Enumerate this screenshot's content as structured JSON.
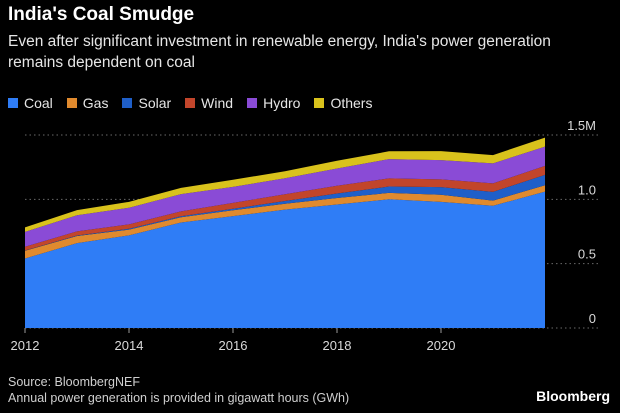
{
  "header": {
    "title": "India's Coal Smudge",
    "subtitle": "Even after significant investment in renewable energy, India's power generation remains dependent on coal"
  },
  "footer": {
    "source": "Source: BloombergNEF",
    "note": "Annual power generation is provided in gigawatt hours (GWh)",
    "brand": "Bloomberg"
  },
  "chart_data": {
    "type": "area",
    "stacked": true,
    "title": "India's Coal Smudge",
    "xlabel": "",
    "ylabel": "",
    "x": [
      2012,
      2013,
      2014,
      2015,
      2016,
      2017,
      2018,
      2019,
      2020,
      2021,
      2022
    ],
    "xlim": [
      2012,
      2022
    ],
    "ylim": [
      0,
      1500000
    ],
    "x_ticks": [
      "2012",
      "2014",
      "2016",
      "2018",
      "2020"
    ],
    "x_tick_values": [
      2012,
      2014,
      2016,
      2018,
      2020
    ],
    "y_ticks": [
      "0",
      "0.5",
      "1.0",
      "1.5M"
    ],
    "y_tick_values": [
      0,
      500000,
      1000000,
      1500000
    ],
    "grid": true,
    "legend_position": "top-left",
    "series": [
      {
        "name": "Coal",
        "color": "#2f7df6",
        "values": [
          540000,
          660000,
          720000,
          820000,
          870000,
          920000,
          960000,
          1000000,
          980000,
          950000,
          1060000
        ]
      },
      {
        "name": "Gas",
        "color": "#e08a2e",
        "values": [
          60000,
          55000,
          45000,
          40000,
          45000,
          45000,
          50000,
          50000,
          55000,
          40000,
          50000
        ]
      },
      {
        "name": "Solar",
        "color": "#1f5fc9",
        "values": [
          2000,
          4000,
          6000,
          8000,
          12000,
          22000,
          35000,
          50000,
          60000,
          68000,
          80000
        ]
      },
      {
        "name": "Wind",
        "color": "#c2452b",
        "values": [
          30000,
          32000,
          34000,
          38000,
          45000,
          52000,
          60000,
          63000,
          60000,
          66000,
          70000
        ]
      },
      {
        "name": "Hydro",
        "color": "#8a4bd6",
        "values": [
          115000,
          125000,
          130000,
          135000,
          125000,
          125000,
          135000,
          150000,
          150000,
          155000,
          150000
        ]
      },
      {
        "name": "Others",
        "color": "#d9c21c",
        "values": [
          35000,
          40000,
          45000,
          48000,
          55000,
          55000,
          60000,
          60000,
          70000,
          65000,
          70000
        ]
      }
    ]
  }
}
